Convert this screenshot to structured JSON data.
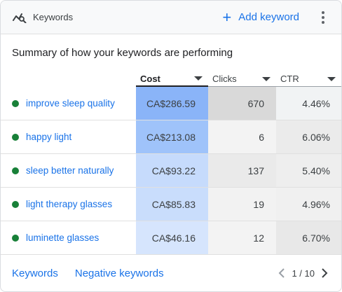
{
  "header": {
    "title": "Keywords",
    "logo_icon": "keywords-chart-icon",
    "add_keyword_label": "Add keyword",
    "more_icon": "more-vert-icon"
  },
  "summary_title": "Summary of how your keywords are performing",
  "table": {
    "columns": [
      {
        "label": "",
        "sortable": false
      },
      {
        "label": "Cost",
        "sortable": true,
        "active": true
      },
      {
        "label": "Clicks",
        "sortable": true
      },
      {
        "label": "CTR",
        "sortable": true
      }
    ],
    "rows": [
      {
        "keyword": "improve sleep quality",
        "status_color": "#188038",
        "cost": "CA$286.59",
        "clicks": "670",
        "ctr": "4.46%",
        "cost_color": "#8ab4f8",
        "clicks_color": "#d9d9d9",
        "ctr_color": "#f1f3f4"
      },
      {
        "keyword": "happy light",
        "status_color": "#188038",
        "cost": "CA$213.08",
        "clicks": "6",
        "ctr": "6.06%",
        "cost_color": "#9fc3fa",
        "clicks_color": "#f3f3f3",
        "ctr_color": "#ebebeb"
      },
      {
        "keyword": "sleep better naturally",
        "status_color": "#188038",
        "cost": "CA$93.22",
        "clicks": "137",
        "ctr": "5.40%",
        "cost_color": "#c6dbfc",
        "clicks_color": "#eaeaea",
        "ctr_color": "#eeeeee"
      },
      {
        "keyword": "light therapy glasses",
        "status_color": "#188038",
        "cost": "CA$85.83",
        "clicks": "19",
        "ctr": "4.96%",
        "cost_color": "#c9ddfc",
        "clicks_color": "#f2f2f2",
        "ctr_color": "#f0f0f0"
      },
      {
        "keyword": "luminette glasses",
        "status_color": "#188038",
        "cost": "CA$46.16",
        "clicks": "12",
        "ctr": "6.70%",
        "cost_color": "#d6e5fd",
        "clicks_color": "#f3f3f3",
        "ctr_color": "#e8e8e8"
      }
    ]
  },
  "footer": {
    "keywords_link": "Keywords",
    "negative_keywords_link": "Negative keywords",
    "pagination": "1 / 10"
  }
}
